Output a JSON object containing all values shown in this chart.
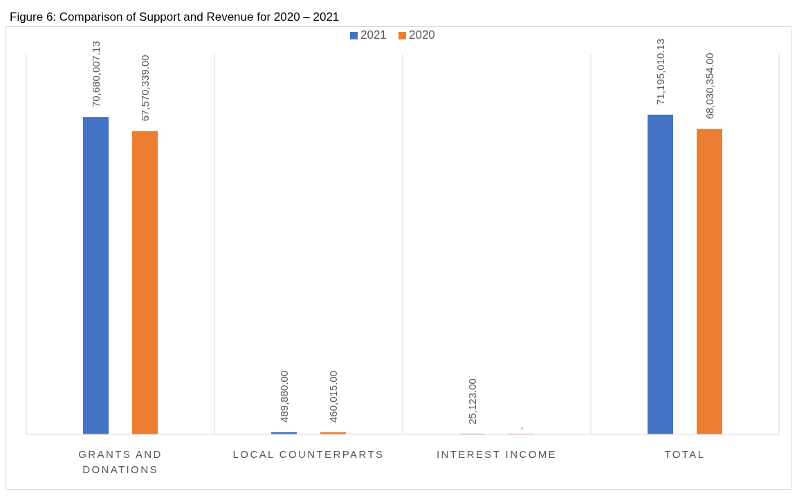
{
  "chart_data": {
    "type": "bar",
    "title": "Figure 6: Comparison of Support and Revenue for 2020 – 2021",
    "categories": [
      "GRANTS AND DONATIONS",
      "LOCAL COUNTERPARTS",
      "INTEREST INCOME",
      "TOTAL"
    ],
    "series": [
      {
        "name": "2021",
        "color": "#4472c4",
        "values": [
          70680007.13,
          489880.0,
          25123.0,
          71195010.13
        ],
        "value_labels": [
          "70,680,007.13",
          "489,880.00",
          "25,123.00",
          "71,195,010.13"
        ]
      },
      {
        "name": "2020",
        "color": "#ed7d31",
        "values": [
          67570339.0,
          460015.0,
          0,
          68030354.0
        ],
        "value_labels": [
          "67,570,339.00",
          "460,015.00",
          "-",
          "68,030,354.00"
        ]
      }
    ],
    "grid": "x",
    "legend": "top"
  }
}
